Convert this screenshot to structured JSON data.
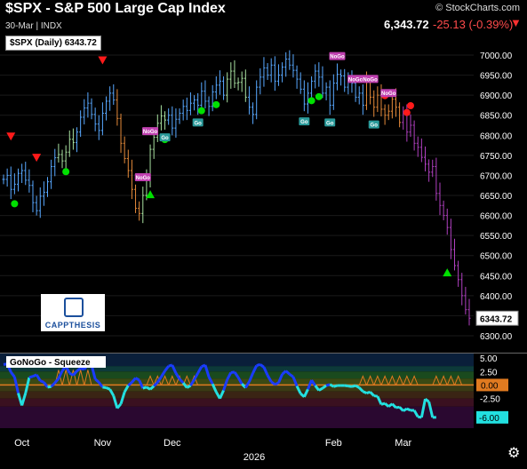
{
  "header": {
    "title": "$SPX - S&P 500 Large Cap Index",
    "subtitle": "30-Mar | INDX",
    "brand": "© StockCharts.com",
    "last_price": "6,343.72",
    "change": "-25.13 (-0.39%)",
    "down_arrow": "▼"
  },
  "legend": {
    "label": "$SPX (Daily) 6343.72"
  },
  "logo": {
    "text": "CAPPTHESIS"
  },
  "settings_icon": "⚙",
  "chart_data": [
    {
      "type": "candlestick",
      "title": "$SPX (Daily) 6343.72",
      "ylim": [
        6280,
        7050
      ],
      "y_ticks": [
        "7000.00",
        "6950.00",
        "6900.00",
        "6850.00",
        "6800.00",
        "6750.00",
        "6700.00",
        "6650.00",
        "6600.00",
        "6550.00",
        "6500.00",
        "6450.00",
        "6400.00",
        "6350.00",
        "6300.00"
      ],
      "y_tick_values": [
        7000,
        6950,
        6900,
        6850,
        6800,
        6750,
        6700,
        6650,
        6600,
        6550,
        6500,
        6450,
        6400,
        6350,
        6300
      ],
      "last_value_label": "6343.72",
      "last_value": 6343.72,
      "x_labels": [
        "Oct",
        "Nov",
        "Dec",
        "Feb",
        "Mar"
      ],
      "x_label_index": [
        5,
        27,
        46,
        90,
        109
      ],
      "year_label": "2026",
      "closes": [
        6690,
        6700,
        6665,
        6678,
        6705,
        6712,
        6688,
        6675,
        6632,
        6612,
        6648,
        6658,
        6684,
        6722,
        6744,
        6752,
        6736,
        6758,
        6790,
        6782,
        6808,
        6845,
        6868,
        6880,
        6852,
        6828,
        6812,
        6855,
        6885,
        6905,
        6888,
        6842,
        6780,
        6742,
        6712,
        6665,
        6618,
        6605,
        6650,
        6688,
        6765,
        6795,
        6830,
        6848,
        6838,
        6850,
        6818,
        6840,
        6855,
        6872,
        6862,
        6880,
        6888,
        6875,
        6910,
        6885,
        6872,
        6908,
        6925,
        6935,
        6900,
        6940,
        6960,
        6930,
        6932,
        6942,
        6895,
        6870,
        6852,
        6920,
        6945,
        6968,
        6950,
        6975,
        6935,
        6950,
        6970,
        6990,
        6975,
        6962,
        6940,
        6915,
        6878,
        6905,
        6935,
        6960,
        6945,
        6905,
        6920,
        6875,
        6930,
        6952,
        6948,
        6920,
        6935,
        6930,
        6895,
        6905,
        6875,
        6932,
        6895,
        6870,
        6900,
        6865,
        6850,
        6860,
        6890,
        6870,
        6832,
        6855,
        6808,
        6825,
        6780,
        6770,
        6745,
        6728,
        6708,
        6722,
        6655,
        6625,
        6600,
        6570,
        6515,
        6475,
        6440,
        6400,
        6365,
        6343.72
      ],
      "color_segments": [
        {
          "from": 0,
          "to": 14,
          "color": "#58a8ff"
        },
        {
          "from": 15,
          "to": 19,
          "color": "#a8e0a0"
        },
        {
          "from": 20,
          "to": 30,
          "color": "#58a8ff"
        },
        {
          "from": 31,
          "to": 37,
          "color": "#e58a3a"
        },
        {
          "from": 38,
          "to": 44,
          "color": "#a8e0a0"
        },
        {
          "from": 45,
          "to": 60,
          "color": "#58a8ff"
        },
        {
          "from": 61,
          "to": 66,
          "color": "#a8e0a0"
        },
        {
          "from": 67,
          "to": 98,
          "color": "#58a8ff"
        },
        {
          "from": 99,
          "to": 108,
          "color": "#e58a3a"
        },
        {
          "from": 109,
          "to": 128,
          "color": "#b040c0"
        }
      ],
      "up_markers": [
        10,
        28,
        38,
        48,
        58,
        66
      ],
      "down_markers": [
        0,
        10,
        28,
        99,
        108,
        112,
        110
      ],
      "triangle_up": [
        40,
        121
      ],
      "triangle_down": [
        2,
        9,
        27
      ],
      "red_dots": [
        104,
        110,
        111
      ],
      "green_dots": [
        3,
        17,
        44,
        54,
        58,
        84,
        86
      ],
      "tags": [
        {
          "index": 44,
          "text": "Go"
        },
        {
          "index": 53,
          "text": "Go"
        },
        {
          "index": 82,
          "text": "Go"
        },
        {
          "index": 38,
          "text": "NoGo"
        },
        {
          "index": 40,
          "text": "NoGo"
        },
        {
          "index": 91,
          "text": "NoGo"
        },
        {
          "index": 96,
          "text": "NoGo"
        },
        {
          "index": 100,
          "text": "NoGo"
        },
        {
          "index": 105,
          "text": "NoGo"
        },
        {
          "index": 89,
          "text": "Go"
        },
        {
          "index": 101,
          "text": "Go"
        }
      ]
    },
    {
      "type": "line",
      "title": "GoNoGo - Squeeze",
      "ylim": [
        -8,
        6
      ],
      "y_ticks": [
        "5.00",
        "2.50",
        "0.00",
        "-2.50",
        "-6.00"
      ],
      "y_tick_values": [
        5,
        2.5,
        0,
        -2.5,
        -6
      ],
      "values": [
        3.8,
        3.9,
        2.4,
        1.5,
        -1.5,
        -3.8,
        -1.5,
        1.4,
        1.6,
        1.9,
        0.8,
        0.5,
        -0.4,
        -0.3,
        0.4,
        1.2,
        2.6,
        3.5,
        2.2,
        1.8,
        2.6,
        3.1,
        2.9,
        3.8,
        3.7,
        1.1,
        0.5,
        -0.4,
        -0.5,
        -0.8,
        -2.0,
        -4.3,
        -3.5,
        -1.3,
        -0.1,
        0.5,
        1.3,
        0.9,
        -0.6,
        -0.4,
        -0.8,
        -0.2,
        0.5,
        1.5,
        2.6,
        3.5,
        3.7,
        2.2,
        1.1,
        0.4,
        -0.5,
        -0.1,
        1.0,
        2.2,
        3.4,
        3.7,
        1.5,
        0.2,
        -1.3,
        -2.5,
        -1.0,
        1.0,
        2.3,
        2.4,
        1.4,
        0.2,
        -0.5,
        0.6,
        2.2,
        3.6,
        3.8,
        3.3,
        1.8,
        0.6,
        0.1,
        0.4,
        2.0,
        2.6,
        2.0,
        1.5,
        -0.2,
        -1.6,
        -2.2,
        -0.8,
        0.9,
        -0.1,
        -1.0,
        -0.6,
        -0.1,
        0.1,
        -0.3,
        -0.1,
        -0.1,
        -0.1,
        -0.2,
        -0.3,
        -0.1,
        -0.5,
        -1.2,
        -1.5,
        -1.3,
        -2.0,
        -2.1,
        -3.6,
        -3.4,
        -4.0,
        -3.5,
        -4.2,
        -4.1,
        -4.8,
        -4.4,
        -4.7,
        -4.7,
        -5.9,
        -6.0,
        -2.6,
        -3.1,
        -6.0,
        -6.0
      ],
      "squeeze_zones": [
        [
          15,
          23
        ],
        [
          40,
          52
        ],
        [
          98,
          112
        ],
        [
          118,
          124
        ]
      ],
      "last_value_label": "-6.00"
    }
  ]
}
